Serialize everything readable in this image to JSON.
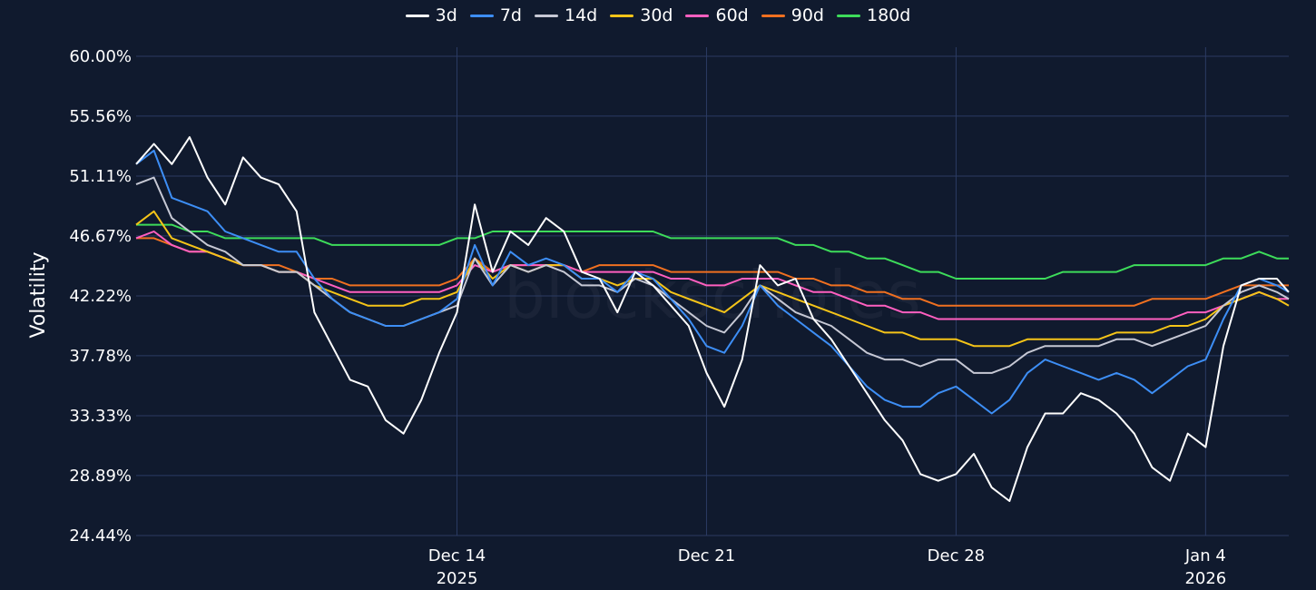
{
  "watermark": "blockscholes",
  "chart_data": {
    "type": "line",
    "title": "",
    "ylabel": "Volatility",
    "xlabel": "",
    "ylim": [
      24.44,
      60.0
    ],
    "xlim": [
      "2025-12-05T00:00",
      "2026-01-06T08:00"
    ],
    "y_ticks": [
      "24.44%",
      "28.89%",
      "33.33%",
      "37.78%",
      "42.22%",
      "46.67%",
      "51.11%",
      "55.56%",
      "60.00%"
    ],
    "x_ticks": [
      {
        "date": "2025-12-14",
        "label": "Dec 14",
        "sublabel": "2025"
      },
      {
        "date": "2025-12-21",
        "label": "Dec 21",
        "sublabel": ""
      },
      {
        "date": "2025-12-28",
        "label": "Dec 28",
        "sublabel": ""
      },
      {
        "date": "2026-01-04",
        "label": "Jan 4",
        "sublabel": "2026"
      }
    ],
    "grid": true,
    "legend_position": "top-center",
    "x": [
      "2025-12-05T00:00",
      "2025-12-05T12:00",
      "2025-12-06T00:00",
      "2025-12-06T12:00",
      "2025-12-07T00:00",
      "2025-12-07T12:00",
      "2025-12-08T00:00",
      "2025-12-08T12:00",
      "2025-12-09T00:00",
      "2025-12-09T12:00",
      "2025-12-10T00:00",
      "2025-12-10T12:00",
      "2025-12-11T00:00",
      "2025-12-11T12:00",
      "2025-12-12T00:00",
      "2025-12-12T12:00",
      "2025-12-13T00:00",
      "2025-12-13T12:00",
      "2025-12-14T00:00",
      "2025-12-14T12:00",
      "2025-12-15T00:00",
      "2025-12-15T12:00",
      "2025-12-16T00:00",
      "2025-12-16T12:00",
      "2025-12-17T00:00",
      "2025-12-17T12:00",
      "2025-12-18T00:00",
      "2025-12-18T12:00",
      "2025-12-19T00:00",
      "2025-12-19T12:00",
      "2025-12-20T00:00",
      "2025-12-20T12:00",
      "2025-12-21T00:00",
      "2025-12-21T12:00",
      "2025-12-22T00:00",
      "2025-12-22T12:00",
      "2025-12-23T00:00",
      "2025-12-23T12:00",
      "2025-12-24T00:00",
      "2025-12-24T12:00",
      "2025-12-25T00:00",
      "2025-12-25T12:00",
      "2025-12-26T00:00",
      "2025-12-26T12:00",
      "2025-12-27T00:00",
      "2025-12-27T12:00",
      "2025-12-28T00:00",
      "2025-12-28T12:00",
      "2025-12-29T00:00",
      "2025-12-29T12:00",
      "2025-12-30T00:00",
      "2025-12-30T12:00",
      "2025-12-31T00:00",
      "2025-12-31T12:00",
      "2026-01-01T00:00",
      "2026-01-01T12:00",
      "2026-01-02T00:00",
      "2026-01-02T12:00",
      "2026-01-03T00:00",
      "2026-01-03T12:00",
      "2026-01-04T00:00",
      "2026-01-04T12:00",
      "2026-01-05T00:00",
      "2026-01-05T12:00",
      "2026-01-06T00:00",
      "2026-01-06T08:00"
    ],
    "series": [
      {
        "name": "3d",
        "color": "#ffffff",
        "values": [
          52.0,
          53.5,
          52.0,
          54.0,
          51.0,
          49.0,
          52.5,
          51.0,
          50.5,
          48.5,
          41.0,
          38.5,
          36.0,
          35.5,
          33.0,
          32.0,
          34.5,
          38.0,
          41.0,
          49.0,
          44.0,
          47.0,
          46.0,
          48.0,
          47.0,
          44.0,
          43.5,
          41.0,
          44.0,
          43.0,
          41.5,
          40.0,
          36.5,
          34.0,
          37.5,
          44.5,
          43.0,
          43.5,
          40.5,
          39.0,
          37.0,
          35.0,
          33.0,
          31.5,
          29.0,
          28.5,
          29.0,
          30.5,
          28.0,
          27.0,
          31.0,
          33.5,
          33.5,
          35.0,
          34.5,
          33.5,
          32.0,
          29.5,
          28.5,
          32.0,
          31.0,
          38.5,
          43.0,
          43.5,
          43.5,
          42.5
        ]
      },
      {
        "name": "7d",
        "color": "#3d8ef5",
        "values": [
          52.0,
          53.0,
          49.5,
          49.0,
          48.5,
          47.0,
          46.5,
          46.0,
          45.5,
          45.5,
          43.5,
          42.0,
          41.0,
          40.5,
          40.0,
          40.0,
          40.5,
          41.0,
          42.0,
          46.0,
          43.0,
          45.5,
          44.5,
          45.0,
          44.5,
          43.5,
          43.5,
          42.5,
          44.0,
          43.5,
          42.0,
          40.5,
          38.5,
          38.0,
          40.0,
          43.0,
          41.5,
          40.5,
          39.5,
          38.5,
          37.0,
          35.5,
          34.5,
          34.0,
          34.0,
          35.0,
          35.5,
          34.5,
          33.5,
          34.5,
          36.5,
          37.5,
          37.0,
          36.5,
          36.0,
          36.5,
          36.0,
          35.0,
          36.0,
          37.0,
          37.5,
          40.5,
          43.0,
          43.5,
          43.0,
          42.5
        ]
      },
      {
        "name": "14d",
        "color": "#c6c8d4",
        "values": [
          50.5,
          51.0,
          48.0,
          47.0,
          46.0,
          45.5,
          44.5,
          44.5,
          44.0,
          44.0,
          43.0,
          42.0,
          41.0,
          40.5,
          40.0,
          40.0,
          40.5,
          41.0,
          41.5,
          45.0,
          43.0,
          44.5,
          44.0,
          44.5,
          44.0,
          43.0,
          43.0,
          42.5,
          43.5,
          43.0,
          42.0,
          41.0,
          40.0,
          39.5,
          41.0,
          43.0,
          42.0,
          41.0,
          40.5,
          40.0,
          39.0,
          38.0,
          37.5,
          37.5,
          37.0,
          37.5,
          37.5,
          36.5,
          36.5,
          37.0,
          38.0,
          38.5,
          38.5,
          38.5,
          38.5,
          39.0,
          39.0,
          38.5,
          39.0,
          39.5,
          40.0,
          41.5,
          42.5,
          43.0,
          42.5,
          42.0
        ]
      },
      {
        "name": "30d",
        "color": "#f5c418",
        "values": [
          47.5,
          48.5,
          46.5,
          46.0,
          45.5,
          45.0,
          44.5,
          44.5,
          44.0,
          44.0,
          43.0,
          42.5,
          42.0,
          41.5,
          41.5,
          41.5,
          42.0,
          42.0,
          42.5,
          45.0,
          43.5,
          44.5,
          44.0,
          44.5,
          44.5,
          43.5,
          43.5,
          43.0,
          43.5,
          43.5,
          42.5,
          42.0,
          41.5,
          41.0,
          42.0,
          43.0,
          42.5,
          42.0,
          41.5,
          41.0,
          40.5,
          40.0,
          39.5,
          39.5,
          39.0,
          39.0,
          39.0,
          38.5,
          38.5,
          38.5,
          39.0,
          39.0,
          39.0,
          39.0,
          39.0,
          39.5,
          39.5,
          39.5,
          40.0,
          40.0,
          40.5,
          41.5,
          42.0,
          42.5,
          42.0,
          41.5
        ]
      },
      {
        "name": "60d",
        "color": "#ff5fc0",
        "values": [
          46.5,
          47.0,
          46.0,
          45.5,
          45.5,
          45.0,
          44.5,
          44.5,
          44.0,
          44.0,
          43.5,
          43.0,
          42.5,
          42.5,
          42.5,
          42.5,
          42.5,
          42.5,
          43.0,
          44.5,
          44.0,
          44.5,
          44.5,
          44.5,
          44.5,
          44.0,
          44.0,
          44.0,
          44.0,
          44.0,
          43.5,
          43.5,
          43.0,
          43.0,
          43.5,
          43.5,
          43.5,
          43.0,
          42.5,
          42.5,
          42.0,
          41.5,
          41.5,
          41.0,
          41.0,
          40.5,
          40.5,
          40.5,
          40.5,
          40.5,
          40.5,
          40.5,
          40.5,
          40.5,
          40.5,
          40.5,
          40.5,
          40.5,
          40.5,
          41.0,
          41.0,
          41.5,
          42.0,
          42.5,
          42.0,
          42.0
        ]
      },
      {
        "name": "90d",
        "color": "#f07020",
        "values": [
          46.5,
          46.5,
          46.0,
          45.5,
          45.5,
          45.0,
          44.5,
          44.5,
          44.5,
          44.0,
          43.5,
          43.5,
          43.0,
          43.0,
          43.0,
          43.0,
          43.0,
          43.0,
          43.5,
          45.0,
          44.0,
          44.5,
          44.5,
          44.5,
          44.5,
          44.0,
          44.5,
          44.5,
          44.5,
          44.5,
          44.0,
          44.0,
          44.0,
          44.0,
          44.0,
          44.0,
          44.0,
          43.5,
          43.5,
          43.0,
          43.0,
          42.5,
          42.5,
          42.0,
          42.0,
          41.5,
          41.5,
          41.5,
          41.5,
          41.5,
          41.5,
          41.5,
          41.5,
          41.5,
          41.5,
          41.5,
          41.5,
          42.0,
          42.0,
          42.0,
          42.0,
          42.5,
          43.0,
          43.0,
          43.0,
          43.0
        ]
      },
      {
        "name": "180d",
        "color": "#3ddc5a",
        "values": [
          47.5,
          47.5,
          47.5,
          47.0,
          47.0,
          46.5,
          46.5,
          46.5,
          46.5,
          46.5,
          46.5,
          46.0,
          46.0,
          46.0,
          46.0,
          46.0,
          46.0,
          46.0,
          46.5,
          46.5,
          47.0,
          47.0,
          47.0,
          47.0,
          47.0,
          47.0,
          47.0,
          47.0,
          47.0,
          47.0,
          46.5,
          46.5,
          46.5,
          46.5,
          46.5,
          46.5,
          46.5,
          46.0,
          46.0,
          45.5,
          45.5,
          45.0,
          45.0,
          44.5,
          44.0,
          44.0,
          43.5,
          43.5,
          43.5,
          43.5,
          43.5,
          43.5,
          44.0,
          44.0,
          44.0,
          44.0,
          44.5,
          44.5,
          44.5,
          44.5,
          44.5,
          45.0,
          45.0,
          45.5,
          45.0,
          45.0
        ]
      }
    ]
  }
}
